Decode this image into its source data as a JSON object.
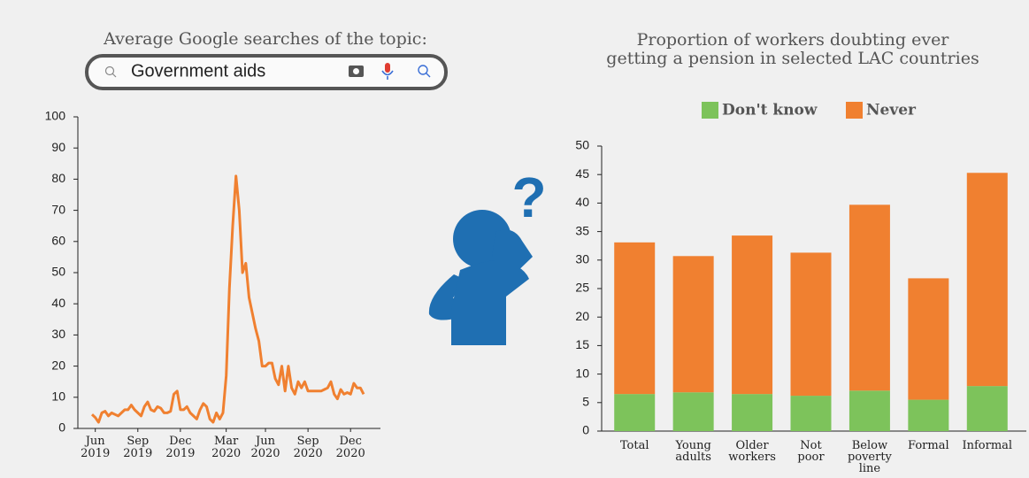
{
  "chart_data": [
    {
      "type": "line",
      "title": "Average Google searches of the topic:",
      "search_query": "Government aids",
      "color": "#f08030",
      "values": [
        4.5,
        3.5,
        2,
        5,
        5.5,
        4,
        5,
        4.5,
        4,
        5,
        6,
        6,
        7.5,
        6,
        5,
        4,
        7,
        8.5,
        6,
        5.5,
        7,
        6.5,
        5,
        5,
        5.5,
        11,
        12,
        6,
        6,
        7,
        5,
        4,
        3,
        6,
        8,
        7,
        3,
        2,
        5,
        3,
        5,
        17,
        45,
        65,
        81,
        70,
        50,
        53,
        42,
        37,
        32,
        28,
        20,
        20,
        21,
        21,
        16,
        14,
        20,
        12,
        20,
        13,
        11,
        15,
        13,
        15,
        12,
        12,
        12,
        12,
        12,
        12.5,
        13,
        15,
        11,
        9.5,
        12.5,
        11,
        11.5,
        11,
        14.5,
        13,
        13,
        11
      ],
      "xticks": [
        {
          "value": 1,
          "label": "Jun 2019"
        },
        {
          "value": 14,
          "label": "Sep 2019"
        },
        {
          "value": 27,
          "label": "Dec 2019"
        },
        {
          "value": 41,
          "label": "Mar 2020"
        },
        {
          "value": 53,
          "label": "Jun 2020"
        },
        {
          "value": 66,
          "label": "Sep 2020"
        },
        {
          "value": 79,
          "label": "Dec 2020"
        }
      ],
      "ylim": [
        0,
        100
      ],
      "yticks": [
        0,
        10,
        20,
        30,
        40,
        50,
        60,
        70,
        80,
        90,
        100
      ]
    },
    {
      "type": "stacked_bar",
      "title": "Proportion of workers doubting ever getting a pension in selected LAC countries",
      "categories": [
        "Total",
        "Young adults",
        "Older workers",
        "Not poor",
        "Below poverty line",
        "Formal",
        "Informal"
      ],
      "series": [
        {
          "name": "Don't know",
          "color": "#7dc35b",
          "values": [
            6.5,
            6.8,
            6.5,
            6.2,
            7.1,
            5.5,
            7.9
          ]
        },
        {
          "name": "Never",
          "color": "#f08030",
          "values": [
            26.6,
            23.9,
            27.8,
            25.1,
            32.6,
            21.3,
            37.4
          ]
        }
      ],
      "ylim": [
        0,
        50
      ],
      "yticks": [
        0,
        5,
        10,
        15,
        20,
        25,
        30,
        35,
        40,
        45,
        50
      ]
    }
  ]
}
